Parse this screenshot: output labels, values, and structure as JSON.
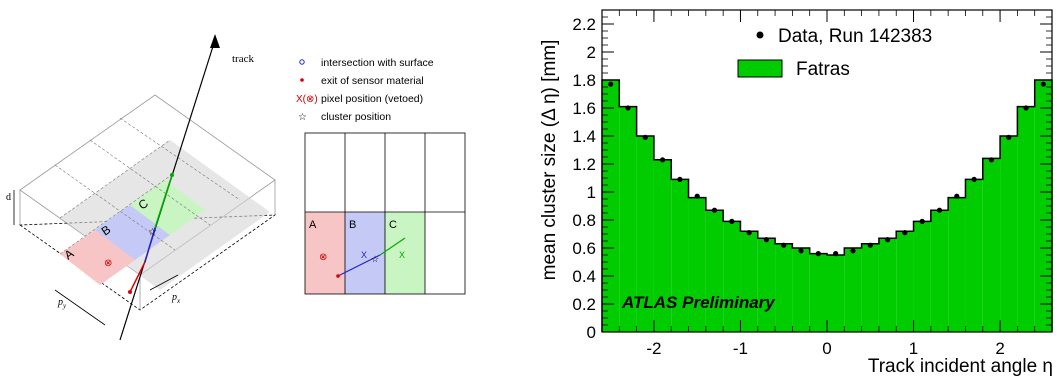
{
  "diagram": {
    "track_label": "track",
    "depth_label": "d",
    "py_label": "p",
    "py_sub": "y",
    "px_label": "p",
    "px_sub": "x",
    "pixel_labels": [
      "A",
      "B",
      "C"
    ],
    "legend": [
      {
        "symbol": "circle-icon",
        "text": "intersection with surface"
      },
      {
        "symbol": "dot-icon",
        "text": "exit of sensor material"
      },
      {
        "symbol": "pixel-mark-icon",
        "text": "pixel position (vetoed)"
      },
      {
        "symbol": "star-icon",
        "text": "cluster position"
      }
    ],
    "colors": {
      "A": "#f7c5c5",
      "B": "#c5c9f5",
      "C": "#c8f5c2",
      "grey": "#d6d6d6"
    }
  },
  "chart_data": {
    "type": "bar",
    "ylabel": "mean cluster size (Δ η) [mm]",
    "xlabel": "Track incident angle η",
    "annotation": "ATLAS Preliminary",
    "xlim": [
      -2.6,
      2.6
    ],
    "ylim": [
      0,
      2.3
    ],
    "xticks": [
      -2,
      -1,
      0,
      1,
      2
    ],
    "yticks": [
      0,
      0.2,
      0.4,
      0.6,
      0.8,
      1,
      1.2,
      1.4,
      1.6,
      1.8,
      2,
      2.2
    ],
    "legend_placement": "top-center",
    "bin_edges": [
      -2.6,
      -2.4,
      -2.2,
      -2.0,
      -1.8,
      -1.6,
      -1.4,
      -1.2,
      -1.0,
      -0.8,
      -0.6,
      -0.4,
      -0.2,
      0.0,
      0.2,
      0.4,
      0.6,
      0.8,
      1.0,
      1.2,
      1.4,
      1.6,
      1.8,
      2.0,
      2.2,
      2.4,
      2.6
    ],
    "series": [
      {
        "name": "Data, Run 142383",
        "kind": "points",
        "color": "#000000",
        "x": [
          -2.5,
          -2.3,
          -2.1,
          -1.9,
          -1.7,
          -1.5,
          -1.3,
          -1.1,
          -0.9,
          -0.7,
          -0.5,
          -0.3,
          -0.1,
          0.1,
          0.3,
          0.5,
          0.7,
          0.9,
          1.1,
          1.3,
          1.5,
          1.7,
          1.9,
          2.1,
          2.3,
          2.5
        ],
        "values": [
          1.77,
          1.6,
          1.39,
          1.23,
          1.09,
          0.97,
          0.87,
          0.79,
          0.71,
          0.66,
          0.62,
          0.58,
          0.56,
          0.56,
          0.58,
          0.62,
          0.66,
          0.71,
          0.79,
          0.87,
          0.97,
          1.09,
          1.23,
          1.39,
          1.6,
          1.77
        ]
      },
      {
        "name": "Fatras",
        "kind": "histogram",
        "color": "#00cc00",
        "values": [
          1.8,
          1.61,
          1.4,
          1.23,
          1.09,
          0.96,
          0.87,
          0.79,
          0.72,
          0.67,
          0.63,
          0.6,
          0.56,
          0.55,
          0.6,
          0.63,
          0.67,
          0.72,
          0.79,
          0.87,
          0.96,
          1.09,
          1.24,
          1.4,
          1.61,
          1.8
        ]
      }
    ]
  }
}
